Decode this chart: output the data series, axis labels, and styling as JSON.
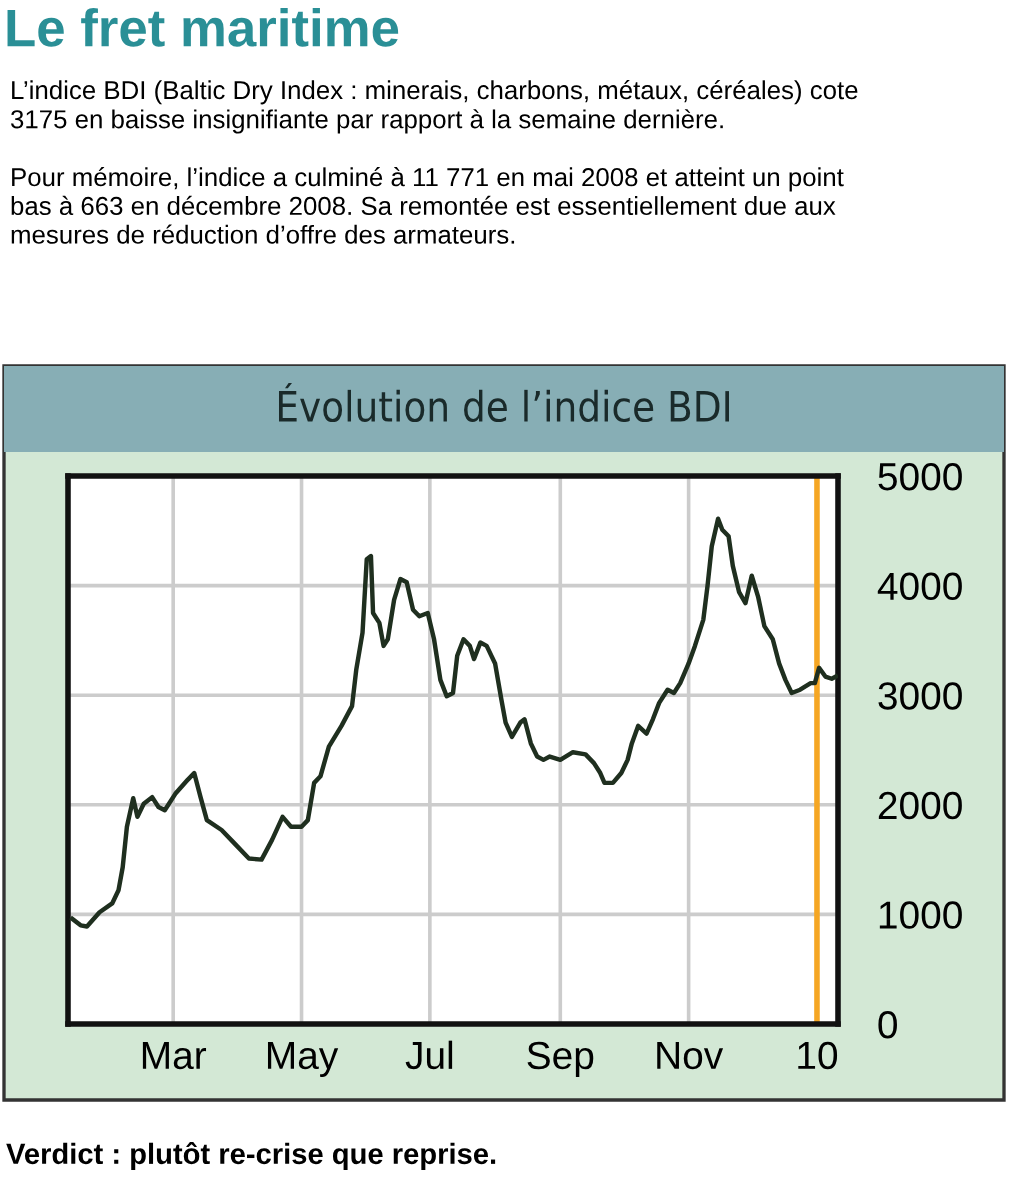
{
  "chart_data": {
    "type": "line",
    "title": "Le fret maritime",
    "subtitle": "L’indice BDI (Baltic Dry Index : minerais, charbons, métaux, céréales) cote\n3175 en baisse insignifiante par rapport à la semaine dernière.\n\nPour mémoire, l’indice a culminé à 11 771 en mai 2008 et atteint un point\nbas à 663 en décembre 2008. Sa remontée est essentiellement due aux\nmesures de réduction d’offre des armateurs.",
    "annotations": [
      "Évolution de l’indice BDI",
      "Verdict : plutôt re-crise que reprise."
    ],
    "x": [
      "2009-01-12",
      "2009-01-16",
      "2009-01-19",
      "2009-01-25",
      "2009-01-31",
      "2009-02-03",
      "2009-02-05",
      "2009-02-07",
      "2009-02-10",
      "2009-02-12",
      "2009-02-15",
      "2009-02-19",
      "2009-02-22",
      "2009-02-25",
      "2009-03-02",
      "2009-03-08",
      "2009-03-11",
      "2009-03-14",
      "2009-03-17",
      "2009-03-24",
      "2009-03-30",
      "2009-04-06",
      "2009-04-12",
      "2009-04-17",
      "2009-04-22",
      "2009-04-26",
      "2009-05-01",
      "2009-05-04",
      "2009-05-07",
      "2009-05-10",
      "2009-05-14",
      "2009-05-20",
      "2009-05-25",
      "2009-05-27",
      "2009-05-30",
      "2009-06-01",
      "2009-06-03",
      "2009-06-04",
      "2009-06-07",
      "2009-06-09",
      "2009-06-11",
      "2009-06-14",
      "2009-06-17",
      "2009-06-20",
      "2009-06-23",
      "2009-06-26",
      "2009-06-30",
      "2009-07-03",
      "2009-07-06",
      "2009-07-09",
      "2009-07-12",
      "2009-07-14",
      "2009-07-17",
      "2009-07-20",
      "2009-07-22",
      "2009-07-25",
      "2009-07-28",
      "2009-08-01",
      "2009-08-04",
      "2009-08-06",
      "2009-08-09",
      "2009-08-13",
      "2009-08-15",
      "2009-08-18",
      "2009-08-21",
      "2009-08-24",
      "2009-08-27",
      "2009-09-01",
      "2009-09-07",
      "2009-09-13",
      "2009-09-17",
      "2009-09-20",
      "2009-09-22",
      "2009-09-26",
      "2009-09-30",
      "2009-10-03",
      "2009-10-05",
      "2009-10-08",
      "2009-10-12",
      "2009-10-15",
      "2009-10-18",
      "2009-10-22",
      "2009-10-25",
      "2009-10-28",
      "2009-11-01",
      "2009-11-04",
      "2009-11-08",
      "2009-11-10",
      "2009-11-12",
      "2009-11-15",
      "2009-11-17",
      "2009-11-20",
      "2009-11-22",
      "2009-11-25",
      "2009-11-28",
      "2009-12-01",
      "2009-12-04",
      "2009-12-07",
      "2009-12-11",
      "2009-12-14",
      "2009-12-17",
      "2009-12-20",
      "2009-12-24",
      "2009-12-29",
      "2009-12-31",
      "2010-01-02",
      "2010-01-05",
      "2010-01-08",
      "2010-01-10"
    ],
    "series": [
      {
        "color": "#1f2f1f",
        "values": [
          960,
          900,
          890,
          1020,
          1100,
          1220,
          1430,
          1800,
          2060,
          1890,
          2010,
          2070,
          1980,
          1950,
          2100,
          2230,
          2290,
          2070,
          1860,
          1770,
          1650,
          1510,
          1500,
          1680,
          1890,
          1800,
          1800,
          1860,
          2200,
          2260,
          2530,
          2720,
          2900,
          3230,
          3570,
          4240,
          4270,
          3750,
          3660,
          3450,
          3510,
          3870,
          4060,
          4030,
          3780,
          3720,
          3750,
          3510,
          3140,
          2990,
          3020,
          3360,
          3510,
          3450,
          3330,
          3480,
          3450,
          3290,
          2960,
          2750,
          2620,
          2750,
          2780,
          2560,
          2440,
          2410,
          2440,
          2410,
          2480,
          2460,
          2380,
          2290,
          2200,
          2200,
          2290,
          2410,
          2560,
          2720,
          2650,
          2780,
          2930,
          3050,
          3020,
          3110,
          3290,
          3450,
          3690,
          4000,
          4360,
          4610,
          4510,
          4450,
          4180,
          3940,
          3840,
          4090,
          3900,
          3630,
          3510,
          3290,
          3140,
          3020,
          3050,
          3110,
          3110,
          3250,
          3170,
          3150,
          3170
        ]
      }
    ],
    "xlim": [
      "2009-01-10",
      "2010-01-11"
    ],
    "xticks": [
      {
        "value": "2009-03-01",
        "label": "Mar"
      },
      {
        "value": "2009-05-01",
        "label": "May"
      },
      {
        "value": "2009-07-01",
        "label": "Jul"
      },
      {
        "value": "2009-09-01",
        "label": "Sep"
      },
      {
        "value": "2009-11-01",
        "label": "Nov"
      },
      {
        "value": "2010-01-01",
        "label": "10"
      }
    ],
    "ylim": [
      0,
      5000
    ],
    "yticks": [
      0,
      1000,
      2000,
      3000,
      4000,
      5000
    ],
    "ref_lines": [
      {
        "axis": "x",
        "value": "2010-01-01",
        "color": "#f5a623"
      }
    ],
    "grid": true
  }
}
